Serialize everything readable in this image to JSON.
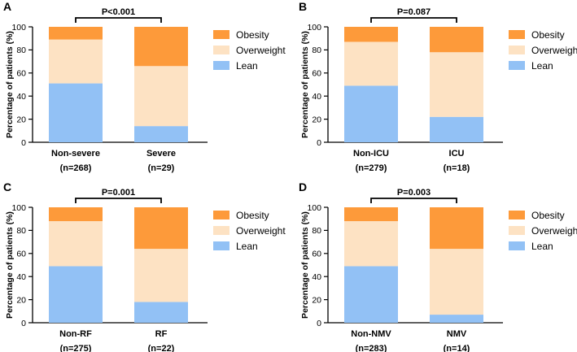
{
  "colors": {
    "Lean": "#92c1f5",
    "Overweight": "#fde2c3",
    "Obesity": "#fd9a3a"
  },
  "chart_data": [
    {
      "panel": "A",
      "type": "bar",
      "stacked": true,
      "ylabel": "Percentage of patients (%)",
      "ylim": [
        0,
        100
      ],
      "yticks": [
        "0",
        "20",
        "40",
        "60",
        "80",
        "100"
      ],
      "categories": [
        "Non-severe",
        "Severe"
      ],
      "ns": [
        "(n=268)",
        "(n=29)"
      ],
      "pvalue": "P<0.001",
      "series": [
        {
          "name": "Lean",
          "values": [
            51,
            14
          ]
        },
        {
          "name": "Overweight",
          "values": [
            38,
            52
          ]
        },
        {
          "name": "Obesity",
          "values": [
            11,
            34
          ]
        }
      ]
    },
    {
      "panel": "B",
      "type": "bar",
      "stacked": true,
      "ylabel": "Percentage of patients (%)",
      "ylim": [
        0,
        100
      ],
      "yticks": [
        "0",
        "20",
        "40",
        "60",
        "80",
        "100"
      ],
      "categories": [
        "Non-ICU",
        "ICU"
      ],
      "ns": [
        "(n=279)",
        "(n=18)"
      ],
      "pvalue": "P=0.087",
      "series": [
        {
          "name": "Lean",
          "values": [
            49,
            22
          ]
        },
        {
          "name": "Overweight",
          "values": [
            38,
            56
          ]
        },
        {
          "name": "Obesity",
          "values": [
            13,
            22
          ]
        }
      ]
    },
    {
      "panel": "C",
      "type": "bar",
      "stacked": true,
      "ylabel": "Percentage of patients (%)",
      "ylim": [
        0,
        100
      ],
      "yticks": [
        "0",
        "20",
        "40",
        "60",
        "80",
        "100"
      ],
      "categories": [
        "Non-RF",
        "RF"
      ],
      "ns": [
        "(n=275)",
        "(n=22)"
      ],
      "pvalue": "P=0.001",
      "series": [
        {
          "name": "Lean",
          "values": [
            49,
            18
          ]
        },
        {
          "name": "Overweight",
          "values": [
            39,
            46
          ]
        },
        {
          "name": "Obesity",
          "values": [
            12,
            36
          ]
        }
      ]
    },
    {
      "panel": "D",
      "type": "bar",
      "stacked": true,
      "ylabel": "Percentage of patients (%)",
      "ylim": [
        0,
        100
      ],
      "yticks": [
        "0",
        "20",
        "40",
        "60",
        "80",
        "100"
      ],
      "categories": [
        "Non-NMV",
        "NMV"
      ],
      "ns": [
        "(n=283)",
        "(n=14)"
      ],
      "pvalue": "P=0.003",
      "series": [
        {
          "name": "Lean",
          "values": [
            49,
            7
          ]
        },
        {
          "name": "Overweight",
          "values": [
            39,
            57
          ]
        },
        {
          "name": "Obesity",
          "values": [
            12,
            36
          ]
        }
      ]
    }
  ],
  "legend_order": [
    "Obesity",
    "Overweight",
    "Lean"
  ]
}
